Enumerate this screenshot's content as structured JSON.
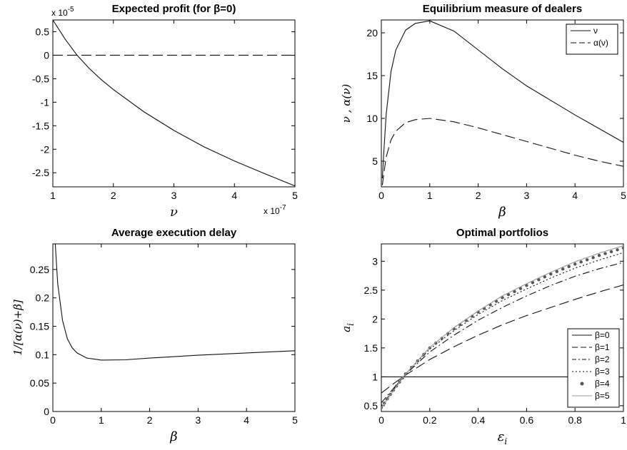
{
  "chart_data": [
    {
      "id": "p1",
      "type": "line",
      "title": "Expected profit (for β=0)",
      "xlabel": "ν",
      "ylabel": "",
      "xlim": [
        1,
        5
      ],
      "ylim": [
        -2.8,
        0.75
      ],
      "x_multiplier": "x 10",
      "x_exponent": "-7",
      "y_multiplier": "x 10",
      "y_exponent": "-5",
      "xticks": [
        1,
        2,
        3,
        4,
        5
      ],
      "xticklabels": [
        "1",
        "2",
        "3",
        "4",
        "5"
      ],
      "yticks": [
        0.5,
        0,
        -0.5,
        -1,
        -1.5,
        -2,
        -2.5
      ],
      "yticklabels": [
        "0.5",
        "0",
        "-0.5",
        "-1",
        "-1.5",
        "-2",
        "-2.5"
      ],
      "series": [
        {
          "style": "solid",
          "x": [
            1,
            1.2,
            1.4,
            1.6,
            1.8,
            2,
            2.5,
            3,
            3.5,
            4,
            4.5,
            5
          ],
          "y": [
            0.75,
            0.35,
            0.0,
            -0.28,
            -0.52,
            -0.73,
            -1.2,
            -1.6,
            -1.95,
            -2.25,
            -2.52,
            -2.78
          ]
        },
        {
          "style": "dashed",
          "x": [
            1,
            5
          ],
          "y": [
            0,
            0
          ]
        }
      ]
    },
    {
      "id": "p2",
      "type": "line",
      "title": "Equilibrium measure of dealers",
      "xlabel": "β",
      "ylabel": "ν , α(ν)",
      "xlim": [
        0,
        5
      ],
      "ylim": [
        2,
        21.5
      ],
      "xticks": [
        0,
        1,
        2,
        3,
        4,
        5
      ],
      "xticklabels": [
        "0",
        "1",
        "2",
        "3",
        "4",
        "5"
      ],
      "yticks": [
        5,
        10,
        15,
        20
      ],
      "yticklabels": [
        "5",
        "10",
        "15",
        "20"
      ],
      "legend": "top-right",
      "series": [
        {
          "name": "ν",
          "style": "solid",
          "x": [
            0.02,
            0.05,
            0.1,
            0.2,
            0.3,
            0.5,
            0.7,
            1,
            1.5,
            2,
            2.5,
            3,
            3.5,
            4,
            4.5,
            5
          ],
          "y": [
            3,
            6,
            10.5,
            15.5,
            18,
            20.3,
            21.1,
            21.4,
            20.2,
            18,
            15.8,
            13.8,
            12.1,
            10.4,
            8.8,
            7.2
          ]
        },
        {
          "name": "α(ν)",
          "style": "dashed",
          "x": [
            0.02,
            0.05,
            0.1,
            0.2,
            0.3,
            0.5,
            0.7,
            1,
            1.5,
            2,
            2.5,
            3,
            3.5,
            4,
            4.5,
            5
          ],
          "y": [
            2.2,
            3.5,
            5.5,
            7.5,
            8.5,
            9.5,
            9.85,
            10,
            9.6,
            8.9,
            8.1,
            7.3,
            6.5,
            5.7,
            5,
            4.4
          ]
        }
      ]
    },
    {
      "id": "p3",
      "type": "line",
      "title": "Average execution delay",
      "xlabel": "β",
      "ylabel": "1/[α(ν)+β]",
      "xlim": [
        0,
        5
      ],
      "ylim": [
        0,
        0.295
      ],
      "xticks": [
        0,
        1,
        2,
        3,
        4,
        5
      ],
      "xticklabels": [
        "0",
        "1",
        "2",
        "3",
        "4",
        "5"
      ],
      "yticks": [
        0,
        0.05,
        0.1,
        0.15,
        0.2,
        0.25
      ],
      "yticklabels": [
        "0",
        "0.05",
        "0.1",
        "0.15",
        "0.2",
        "0.25"
      ],
      "series": [
        {
          "style": "solid",
          "x": [
            0.05,
            0.1,
            0.2,
            0.3,
            0.4,
            0.5,
            0.7,
            1,
            1.5,
            2,
            3,
            4,
            5
          ],
          "y": [
            0.295,
            0.225,
            0.16,
            0.128,
            0.112,
            0.103,
            0.094,
            0.0905,
            0.091,
            0.094,
            0.099,
            0.103,
            0.107
          ]
        }
      ]
    },
    {
      "id": "p4",
      "type": "line",
      "title": "Optimal portfolios",
      "xlabel": "ε",
      "xlabel_sub": "i",
      "ylabel": "a",
      "ylabel_sub": "i",
      "xlim": [
        0,
        1
      ],
      "ylim": [
        0.4,
        3.3
      ],
      "xticks": [
        0,
        0.2,
        0.4,
        0.6,
        0.8,
        1
      ],
      "xticklabels": [
        "0",
        "0.2",
        "0.4",
        "0.6",
        "0.8",
        "1"
      ],
      "yticks": [
        0.5,
        1,
        1.5,
        2,
        2.5,
        3
      ],
      "yticklabels": [
        "0.5",
        "1",
        "1.5",
        "2",
        "2.5",
        "3"
      ],
      "legend": "bottom-right",
      "series": [
        {
          "name": "β=0",
          "style": "solid",
          "x": [
            0,
            1
          ],
          "y": [
            1,
            1
          ]
        },
        {
          "name": "β=1",
          "style": "longdash",
          "x": [
            0,
            0.05,
            0.1,
            0.2,
            0.3,
            0.4,
            0.5,
            0.6,
            0.7,
            0.8,
            0.9,
            1
          ],
          "y": [
            0.72,
            0.88,
            1.03,
            1.3,
            1.52,
            1.72,
            1.9,
            2.06,
            2.2,
            2.34,
            2.47,
            2.59
          ]
        },
        {
          "name": "β=2",
          "style": "dashdot",
          "x": [
            0,
            0.05,
            0.1,
            0.2,
            0.3,
            0.4,
            0.5,
            0.6,
            0.7,
            0.8,
            0.9,
            1
          ],
          "y": [
            0.55,
            0.8,
            1.04,
            1.43,
            1.72,
            1.98,
            2.2,
            2.4,
            2.58,
            2.74,
            2.87,
            2.98
          ]
        },
        {
          "name": "β=3",
          "style": "dotted",
          "x": [
            0,
            0.05,
            0.1,
            0.2,
            0.3,
            0.4,
            0.5,
            0.6,
            0.7,
            0.8,
            0.9,
            1
          ],
          "y": [
            0.5,
            0.78,
            1.05,
            1.48,
            1.8,
            2.08,
            2.32,
            2.52,
            2.71,
            2.88,
            3.02,
            3.15
          ]
        },
        {
          "name": "β=4",
          "style": "markers",
          "x": [
            0,
            0.05,
            0.1,
            0.2,
            0.3,
            0.4,
            0.5,
            0.6,
            0.7,
            0.8,
            0.9,
            1
          ],
          "y": [
            0.47,
            0.77,
            1.05,
            1.5,
            1.83,
            2.12,
            2.37,
            2.58,
            2.78,
            2.95,
            3.1,
            3.23
          ]
        },
        {
          "name": "β=5",
          "style": "grey",
          "x": [
            0,
            0.05,
            0.1,
            0.2,
            0.3,
            0.4,
            0.5,
            0.6,
            0.7,
            0.8,
            0.9,
            1
          ],
          "y": [
            0.46,
            0.76,
            1.05,
            1.51,
            1.85,
            2.14,
            2.4,
            2.61,
            2.81,
            2.99,
            3.14,
            3.27
          ]
        }
      ]
    }
  ]
}
